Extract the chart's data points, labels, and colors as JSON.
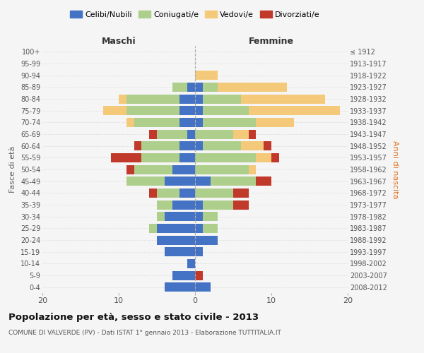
{
  "age_groups": [
    "0-4",
    "5-9",
    "10-14",
    "15-19",
    "20-24",
    "25-29",
    "30-34",
    "35-39",
    "40-44",
    "45-49",
    "50-54",
    "55-59",
    "60-64",
    "65-69",
    "70-74",
    "75-79",
    "80-84",
    "85-89",
    "90-94",
    "95-99",
    "100+"
  ],
  "birth_years": [
    "2008-2012",
    "2003-2007",
    "1998-2002",
    "1993-1997",
    "1988-1992",
    "1983-1987",
    "1978-1982",
    "1973-1977",
    "1968-1972",
    "1963-1967",
    "1958-1962",
    "1953-1957",
    "1948-1952",
    "1943-1947",
    "1938-1942",
    "1933-1937",
    "1928-1932",
    "1923-1927",
    "1918-1922",
    "1913-1917",
    "≤ 1912"
  ],
  "males": {
    "celibi": [
      4,
      3,
      1,
      4,
      5,
      5,
      4,
      3,
      2,
      4,
      3,
      2,
      2,
      1,
      2,
      2,
      2,
      1,
      0,
      0,
      0
    ],
    "coniugati": [
      0,
      0,
      0,
      0,
      0,
      1,
      1,
      2,
      3,
      5,
      5,
      5,
      5,
      4,
      6,
      7,
      7,
      2,
      0,
      0,
      0
    ],
    "vedovi": [
      0,
      0,
      0,
      0,
      0,
      0,
      0,
      0,
      0,
      0,
      0,
      0,
      0,
      0,
      1,
      3,
      1,
      0,
      0,
      0,
      0
    ],
    "divorziati": [
      0,
      0,
      0,
      0,
      0,
      0,
      0,
      0,
      1,
      0,
      1,
      4,
      1,
      1,
      0,
      0,
      0,
      0,
      0,
      0,
      0
    ]
  },
  "females": {
    "nubili": [
      2,
      0,
      0,
      1,
      3,
      1,
      1,
      1,
      0,
      2,
      0,
      0,
      1,
      0,
      1,
      1,
      1,
      1,
      0,
      0,
      0
    ],
    "coniugate": [
      0,
      0,
      0,
      0,
      0,
      2,
      2,
      4,
      5,
      6,
      7,
      8,
      5,
      5,
      7,
      6,
      5,
      2,
      0,
      0,
      0
    ],
    "vedove": [
      0,
      0,
      0,
      0,
      0,
      0,
      0,
      0,
      0,
      0,
      1,
      2,
      3,
      2,
      5,
      12,
      11,
      9,
      3,
      0,
      0
    ],
    "divorziate": [
      0,
      1,
      0,
      0,
      0,
      0,
      0,
      2,
      2,
      2,
      0,
      1,
      1,
      1,
      0,
      0,
      0,
      0,
      0,
      0,
      0
    ]
  },
  "colors": {
    "celibi_nubili": "#4472C4",
    "coniugati_e": "#AECF8C",
    "vedovi_e": "#F5C97A",
    "divorziati_e": "#C0392B"
  },
  "title": "Popolazione per età, sesso e stato civile - 2013",
  "subtitle": "COMUNE DI VALVERDE (PV) - Dati ISTAT 1° gennaio 2013 - Elaborazione TUTTITALIA.IT",
  "xlabel_left": "Maschi",
  "xlabel_right": "Femmine",
  "ylabel": "Fasce di età",
  "ylabel_right": "Anni di nascita",
  "legend_labels": [
    "Celibi/Nubili",
    "Coniugati/e",
    "Vedovi/e",
    "Divorziati/e"
  ],
  "xlim": 20,
  "background_color": "#f5f5f5"
}
